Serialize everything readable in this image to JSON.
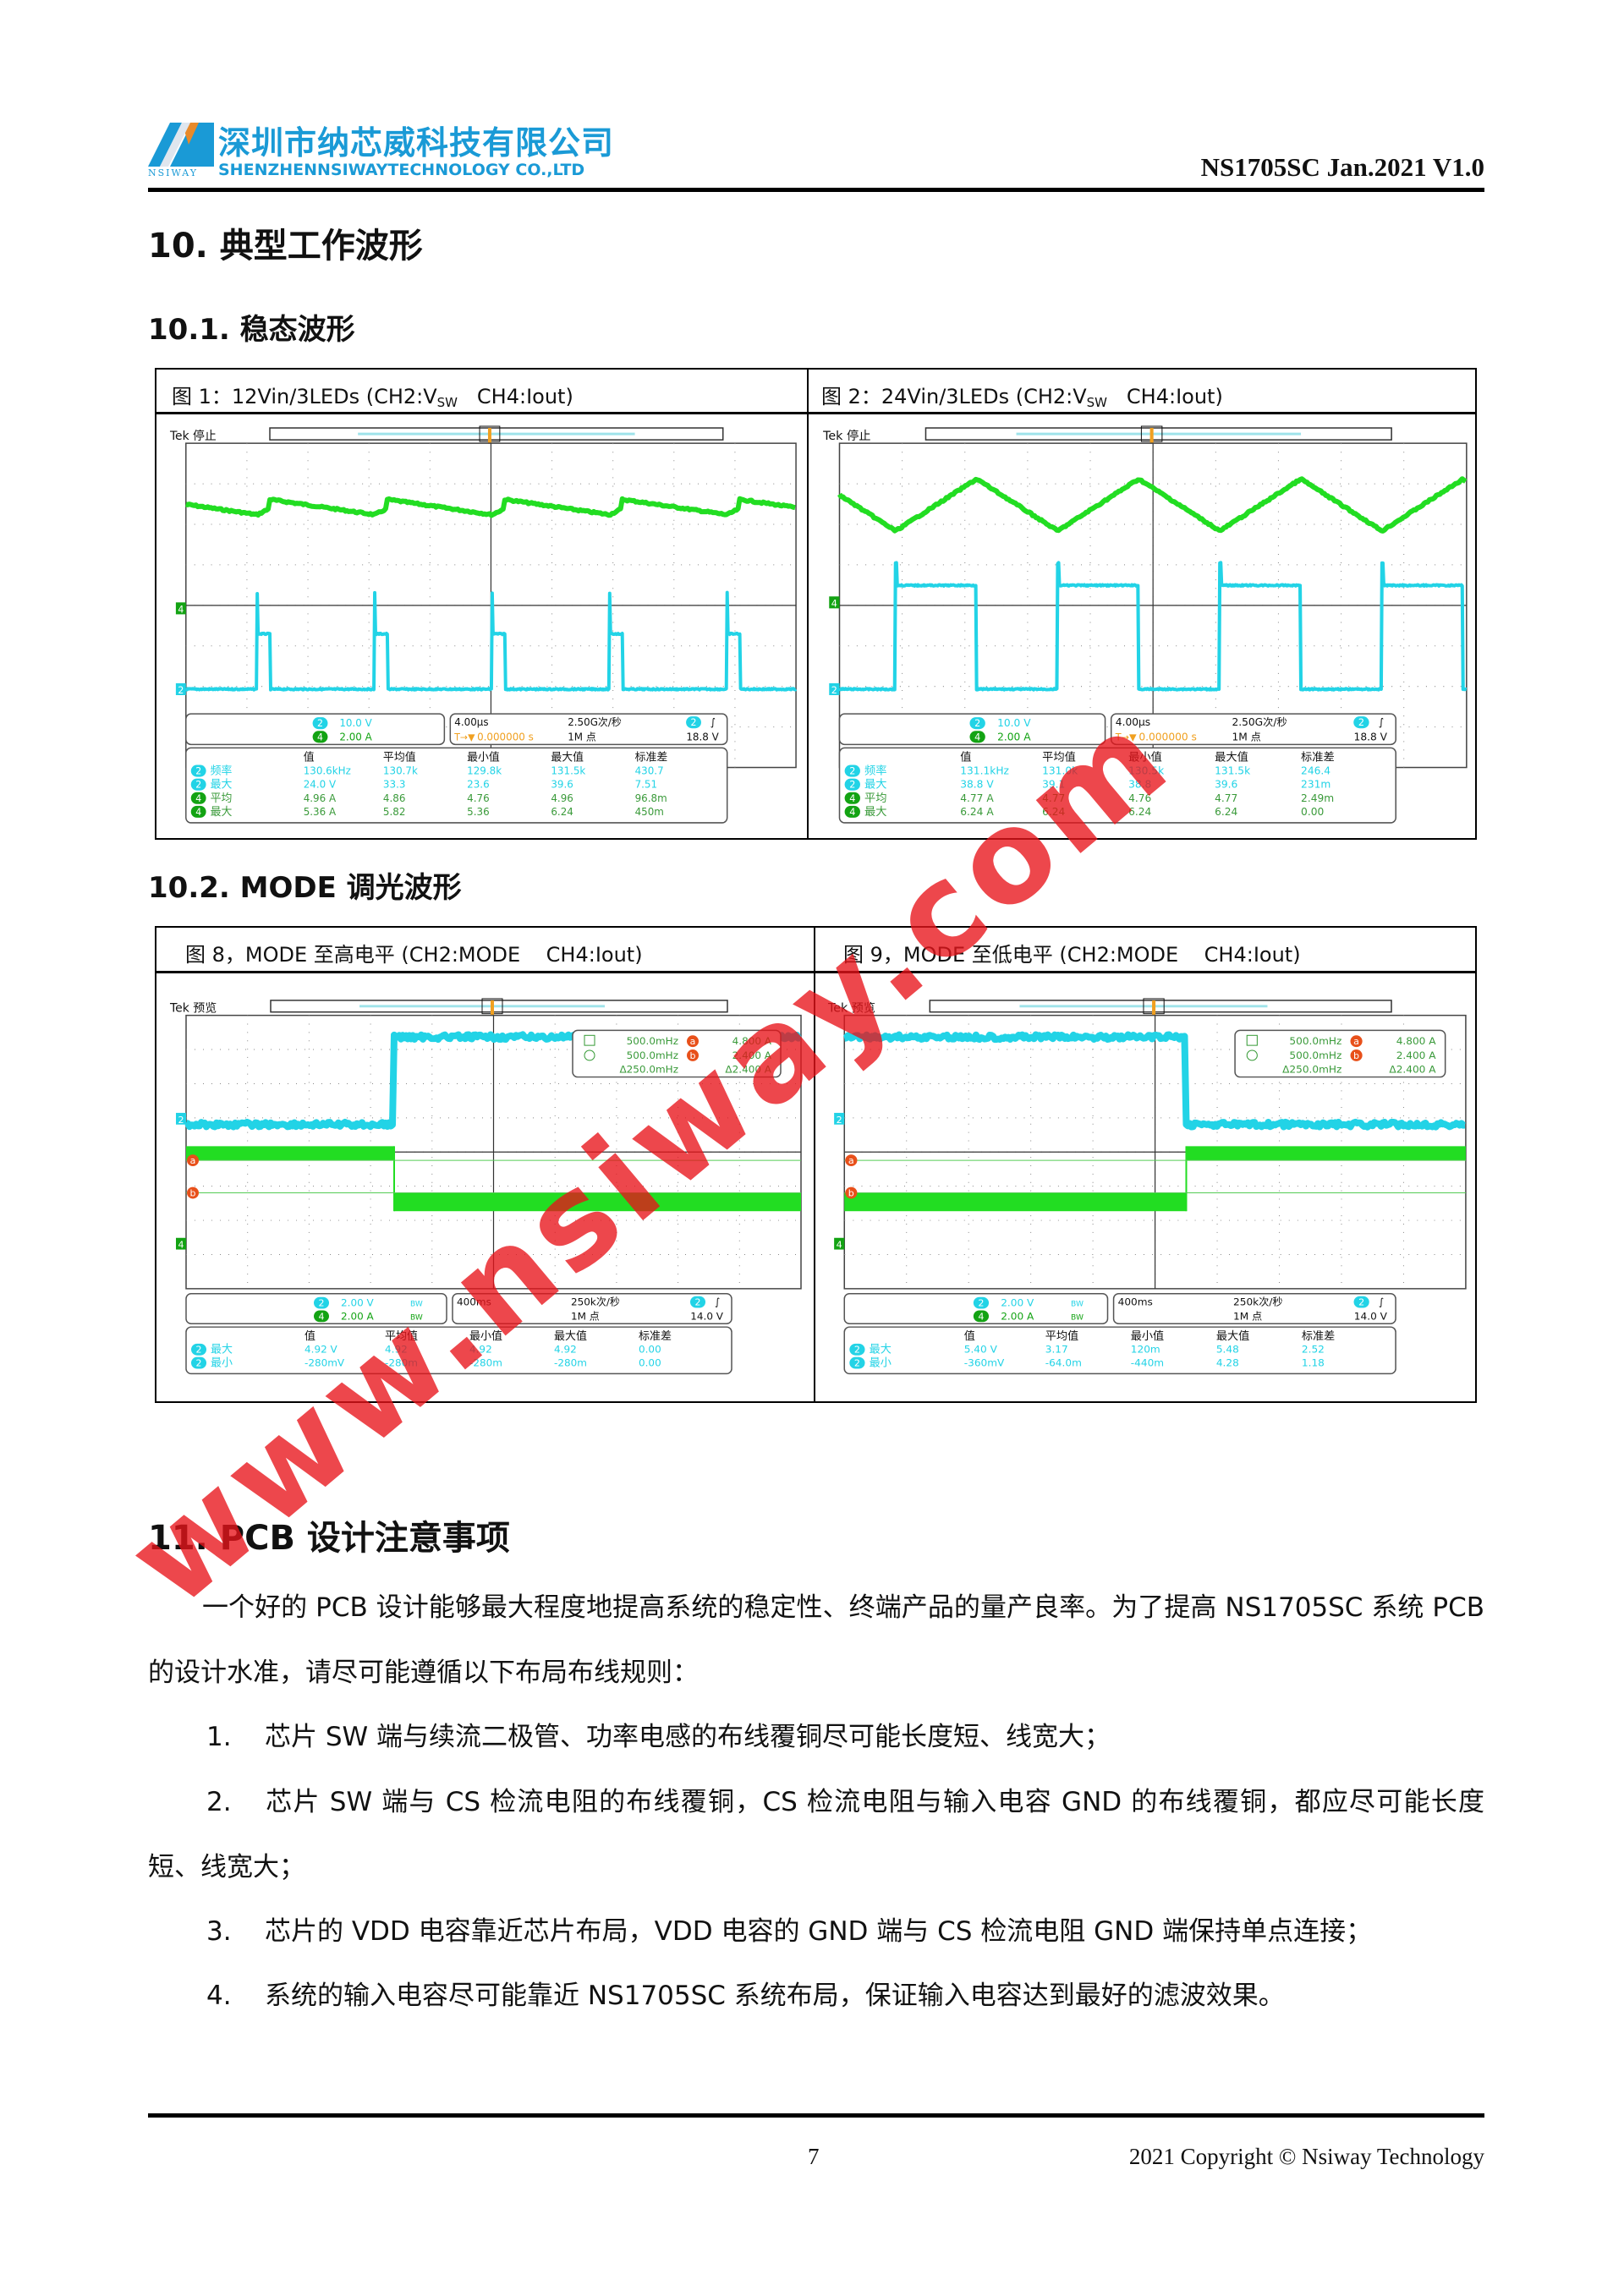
{
  "header": {
    "company_cn": "深圳市纳芯威科技有限公司",
    "company_en": "SHENZHENNSIWAYTECHNOLOGY CO.,LTD",
    "logo_text": "NSIWAY",
    "doc_id": "NS1705SC Jan.2021 V1.0",
    "brand_color": "#1a9ad6"
  },
  "section10": {
    "title": "10. 典型工作波形",
    "sub1": "10.1. 稳态波形",
    "sub2": "10.2. MODE 调光波形"
  },
  "figures": [
    {
      "cap_pre": "图 1：12Vin/3LEDs (CH2:V",
      "cap_sub": "SW",
      "cap_post": "   CH4:Iout)",
      "scope": {
        "status": "Tek 停止",
        "ch2_num": "2",
        "ch4_num": "4",
        "ch2_scale": "10.0 V",
        "ch4_scale": "2.00 A",
        "timebase": "4.00µs",
        "trigger_pos": "0.000000 s",
        "trigger_icon": "T→▼",
        "sample_rate": "2.50G次/秒",
        "record": "1M 点",
        "trigger_ch": "2",
        "trigger_slope": "∫",
        "trigger_level": "18.8 V",
        "meas_headers": [
          "值",
          "平均值",
          "最小值",
          "最大值",
          "标准差"
        ],
        "meas_rows": [
          {
            "ch": "2",
            "name": "频率",
            "values": [
              "130.6kHz",
              "130.7k",
              "129.8k",
              "131.5k",
              "430.7"
            ]
          },
          {
            "ch": "2",
            "name": "最大",
            "values": [
              "24.0 V",
              "33.3",
              "23.6",
              "39.6",
              "7.51"
            ]
          },
          {
            "ch": "4",
            "name": "平均",
            "values": [
              "4.96 A",
              "4.86",
              "4.76",
              "4.96",
              "96.8m"
            ]
          },
          {
            "ch": "4",
            "name": "最大",
            "values": [
              "5.36 A",
              "5.82",
              "5.36",
              "6.24",
              "450m"
            ]
          }
        ]
      }
    },
    {
      "cap_pre": "图 2：24Vin/3LEDs (CH2:V",
      "cap_sub": "SW",
      "cap_post": "   CH4:Iout)",
      "scope": {
        "status": "Tek 停止",
        "ch2_num": "2",
        "ch4_num": "4",
        "ch2_scale": "10.0 V",
        "ch4_scale": "2.00 A",
        "timebase": "4.00µs",
        "trigger_pos": "0.000000 s",
        "trigger_icon": "T→▼",
        "sample_rate": "2.50G次/秒",
        "record": "1M 点",
        "trigger_ch": "2",
        "trigger_slope": "∫",
        "trigger_level": "18.8 V",
        "meas_headers": [
          "值",
          "平均值",
          "最小值",
          "最大值",
          "标准差"
        ],
        "meas_rows": [
          {
            "ch": "2",
            "name": "频率",
            "values": [
              "131.1kHz",
              "131.0k",
              "130.5k",
              "131.5k",
              "246.4"
            ]
          },
          {
            "ch": "2",
            "name": "最大",
            "values": [
              "38.8 V",
              "39.1",
              "38.8",
              "39.6",
              "231m"
            ]
          },
          {
            "ch": "4",
            "name": "平均",
            "values": [
              "4.77 A",
              "4.77",
              "4.76",
              "4.77",
              "2.49m"
            ]
          },
          {
            "ch": "4",
            "name": "最大",
            "values": [
              "6.24 A",
              "6.24",
              "6.24",
              "6.24",
              "0.00"
            ]
          }
        ]
      }
    },
    {
      "cap_pre": "图 8，MODE 至高电平 (CH2:MODE    CH4:Iout)",
      "cap_sub": "",
      "cap_post": "",
      "scope": {
        "status": "Tek 预览",
        "ch2_num": "2",
        "ch4_num": "4",
        "ch2_scale": "2.00 V",
        "ch4_scale": "2.00 A",
        "bw_mark": "BW",
        "timebase": "400ms",
        "trigger_pos": "",
        "trigger_icon": "",
        "sample_rate": "250k次/秒",
        "record": "1M 点",
        "trigger_ch": "2",
        "trigger_slope": "∫",
        "trigger_level": "14.0 V",
        "cursor": {
          "a_label": "a",
          "b_label": "b",
          "a_freq": "500.0mHz",
          "b_freq": "500.0mHz",
          "delta_freq": "Δ250.0mHz",
          "a_val": "4.800 A",
          "b_val": "2.400 A",
          "delta_val": "Δ2.400 A"
        },
        "meas_headers": [
          "值",
          "平均值",
          "最小值",
          "最大值",
          "标准差"
        ],
        "meas_rows": [
          {
            "ch": "2",
            "name": "最大",
            "values": [
              "4.92 V",
              "4.92",
              "4.92",
              "4.92",
              "0.00"
            ]
          },
          {
            "ch": "2",
            "name": "最小",
            "values": [
              "-280mV",
              "-280m",
              "-280m",
              "-280m",
              "0.00"
            ]
          }
        ]
      }
    },
    {
      "cap_pre": "图 9，MODE 至低电平 (CH2:MODE    CH4:Iout)",
      "cap_sub": "",
      "cap_post": "",
      "scope": {
        "status": "Tek 预览",
        "ch2_num": "2",
        "ch4_num": "4",
        "ch2_scale": "2.00 V",
        "ch4_scale": "2.00 A",
        "bw_mark": "BW",
        "timebase": "400ms",
        "trigger_pos": "",
        "trigger_icon": "",
        "sample_rate": "250k次/秒",
        "record": "1M 点",
        "trigger_ch": "2",
        "trigger_slope": "∫",
        "trigger_level": "14.0 V",
        "cursor": {
          "a_label": "a",
          "b_label": "b",
          "a_freq": "500.0mHz",
          "b_freq": "500.0mHz",
          "delta_freq": "Δ250.0mHz",
          "a_val": "4.800 A",
          "b_val": "2.400 A",
          "delta_val": "Δ2.400 A"
        },
        "meas_headers": [
          "值",
          "平均值",
          "最小值",
          "最大值",
          "标准差"
        ],
        "meas_rows": [
          {
            "ch": "2",
            "name": "最大",
            "values": [
              "5.40 V",
              "3.17",
              "120m",
              "5.48",
              "2.52"
            ]
          },
          {
            "ch": "2",
            "name": "最小",
            "values": [
              "-360mV",
              "-64.0m",
              "-440m",
              "4.28",
              "1.18"
            ]
          }
        ]
      }
    }
  ],
  "scope_colors": {
    "ch2": "#22d3e6",
    "ch4": "#22dd22",
    "ch4_badge": "#13a313",
    "cursor": "#e8501a",
    "trigger": "#f0a020"
  },
  "section11": {
    "title": "11. PCB 设计注意事项",
    "intro": "一个好的 PCB 设计能够最大程度地提高系统的稳定性、终端产品的量产良率。为了提高 NS1705SC 系统 PCB 的设计水准，请尽可能遵循以下布局布线规则：",
    "items": [
      {
        "num": "1.",
        "text": "芯片 SW 端与续流二极管、功率电感的布线覆铜尽可能长度短、线宽大；"
      },
      {
        "num": "2.",
        "text": "芯片 SW 端与 CS 检流电阻的布线覆铜，CS 检流电阻与输入电容 GND 的布线覆铜，都应尽可能长度短、线宽大；"
      },
      {
        "num": "3.",
        "text": "芯片的 VDD 电容靠近芯片布局，VDD 电容的 GND 端与 CS 检流电阻 GND 端保持单点连接；"
      },
      {
        "num": "4.",
        "text": "系统的输入电容尽可能靠近 NS1705SC 系统布局，保证输入电容达到最好的滤波效果。"
      }
    ]
  },
  "watermark": "www.nsiway.com",
  "footer": {
    "page": "7",
    "copyright": "2021 Copyright © Nsiway Technology"
  }
}
